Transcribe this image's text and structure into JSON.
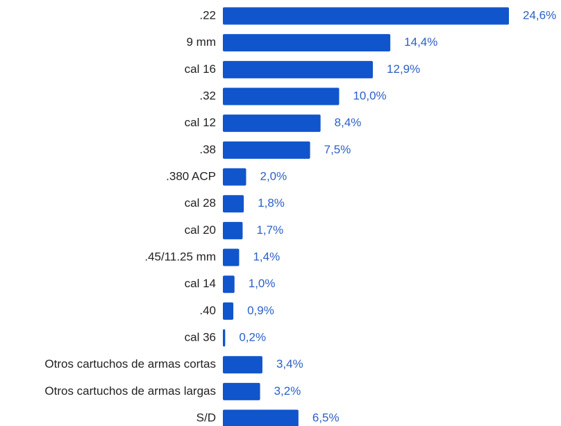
{
  "chart_data": {
    "type": "bar",
    "orientation": "horizontal",
    "categories": [
      ".22",
      "9 mm",
      "cal 16",
      ".32",
      "cal 12",
      ".38",
      ".380 ACP",
      "cal 28",
      "cal 20",
      ".45/11.25 mm",
      "cal 14",
      ".40",
      "cal 36",
      "Otros cartuchos de armas cortas",
      "Otros cartuchos de armas largas",
      "S/D"
    ],
    "values": [
      24.6,
      14.4,
      12.9,
      10.0,
      8.4,
      7.5,
      2.0,
      1.8,
      1.7,
      1.4,
      1.0,
      0.9,
      0.2,
      3.4,
      3.2,
      6.5
    ],
    "value_labels": [
      "24,6%",
      "14,4%",
      "12,9%",
      "10,0%",
      "8,4%",
      "7,5%",
      "2,0%",
      "1,8%",
      "1,7%",
      "1,4%",
      "1,0%",
      "0,9%",
      "0,2%",
      "3,4%",
      "3,2%",
      "6,5%"
    ],
    "color": "#1155cc",
    "label_color": "#2b5fc7"
  }
}
